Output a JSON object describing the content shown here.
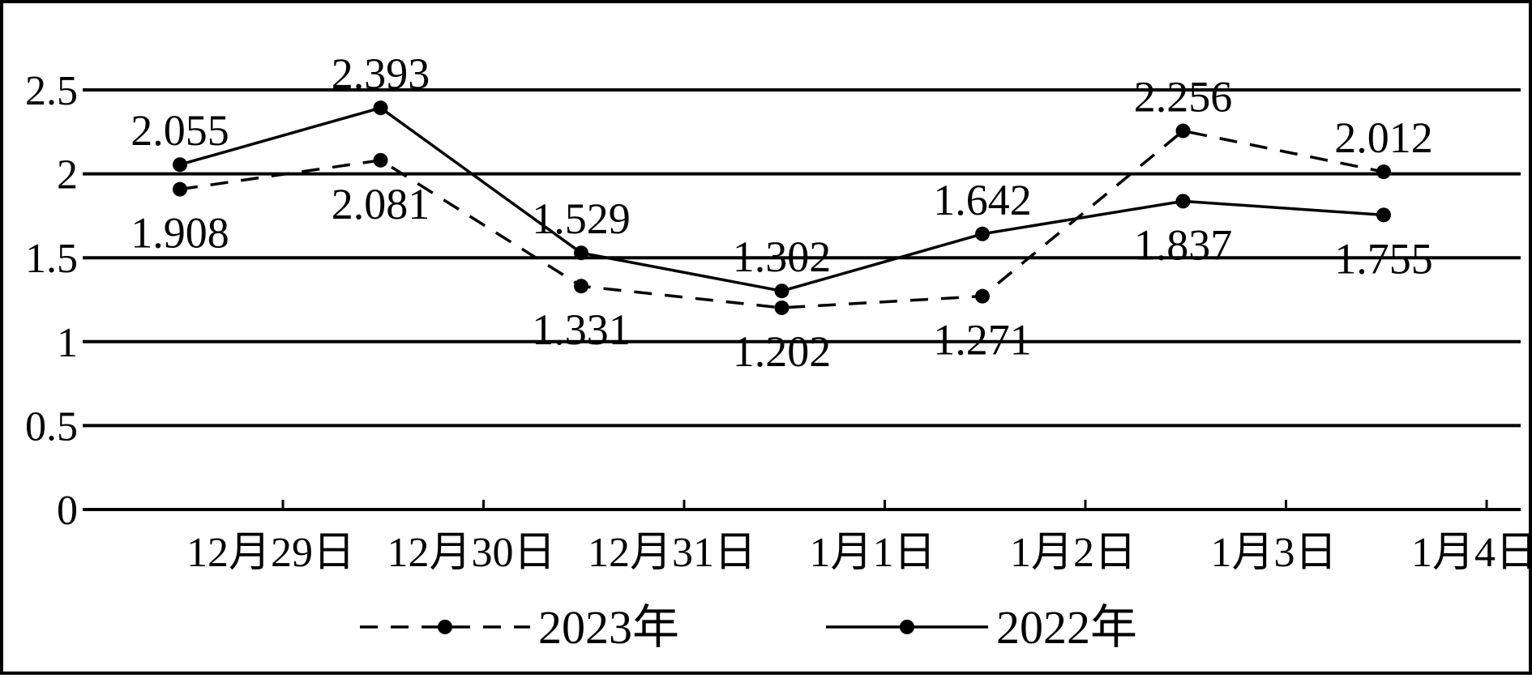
{
  "chart_data": {
    "type": "line",
    "title": "",
    "xlabel": "",
    "ylabel": "",
    "ylim": [
      0,
      2.5
    ],
    "yticks": [
      "0",
      "0.5",
      "1",
      "1.5",
      "2",
      "2.5"
    ],
    "grid": true,
    "categories": [
      "12月29日",
      "12月30日",
      "12月31日",
      "1月1日",
      "1月2日",
      "1月3日",
      "1月4日"
    ],
    "series": [
      {
        "name": "2023年",
        "style": "dashed",
        "values": [
          1.908,
          2.081,
          1.331,
          1.202,
          1.271,
          2.256,
          2.012
        ],
        "labels": [
          "1.908",
          "2.081",
          "1.331",
          "1.202",
          "1.271",
          "2.256",
          "2.012"
        ],
        "label_side": [
          "below",
          "below",
          "below",
          "below",
          "below",
          "above",
          "above"
        ]
      },
      {
        "name": "2022年",
        "style": "solid",
        "values": [
          2.055,
          2.393,
          1.529,
          1.302,
          1.642,
          1.837,
          1.755
        ],
        "labels": [
          "2.055",
          "2.393",
          "1.529",
          "1.302",
          "1.642",
          "1.837",
          "1.755"
        ],
        "label_side": [
          "above",
          "above",
          "above",
          "above",
          "above",
          "below",
          "below"
        ]
      }
    ],
    "legend_position": "bottom",
    "line_color": "#000000"
  }
}
